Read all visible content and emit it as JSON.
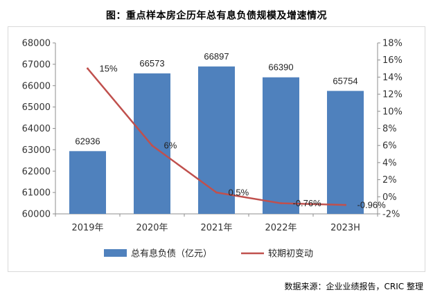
{
  "title": "图：重点样本房企历年总有息负债规模及增速情况",
  "source": "数据来源：企业业绩报告，CRIC 整理",
  "chart_data": {
    "type": "bar+line",
    "categories": [
      "2019年",
      "2020年",
      "2021年",
      "2022年",
      "2023H"
    ],
    "series": [
      {
        "name": "总有息负债（亿元）",
        "kind": "bar",
        "axis": "left",
        "color": "#4f81bd",
        "values": [
          62936,
          66573,
          66897,
          66390,
          65754
        ],
        "labels": [
          "62936",
          "66573",
          "66897",
          "66390",
          "65754"
        ]
      },
      {
        "name": "较期初变动",
        "kind": "line",
        "axis": "right",
        "color": "#c0504d",
        "values": [
          15,
          6,
          0.5,
          -0.76,
          -0.96
        ],
        "labels": [
          "15%",
          "6%",
          "0.5%",
          "-0.76%",
          "-0.96%"
        ]
      }
    ],
    "y_left": {
      "min": 60000,
      "max": 68000,
      "ticks": [
        60000,
        61000,
        62000,
        63000,
        64000,
        65000,
        66000,
        67000,
        68000
      ]
    },
    "y_right": {
      "min": -2,
      "max": 18,
      "ticks": [
        -2,
        0,
        2,
        4,
        6,
        8,
        10,
        12,
        14,
        16,
        18
      ],
      "tick_labels": [
        "-2%",
        "0%",
        "2%",
        "4%",
        "6%",
        "8%",
        "10%",
        "12%",
        "14%",
        "16%",
        "18%"
      ]
    },
    "grid": false,
    "legend_position": "bottom"
  }
}
